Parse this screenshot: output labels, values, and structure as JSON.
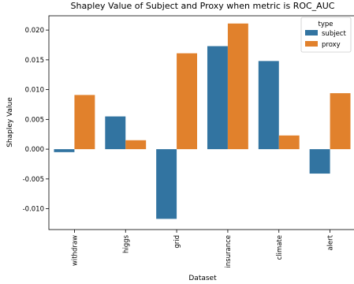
{
  "chart_data": {
    "type": "bar",
    "title": "Shapley Value of Subject and Proxy when metric is ROC_AUC",
    "xlabel": "Dataset",
    "ylabel": "Shapley Value",
    "categories": [
      "withdraw",
      "higgs",
      "grid",
      "insurance",
      "climate",
      "alert"
    ],
    "series": [
      {
        "name": "subject",
        "color": "#3274a1",
        "values": [
          -0.0005,
          0.0055,
          -0.0117,
          0.0173,
          0.0148,
          -0.0041
        ]
      },
      {
        "name": "proxy",
        "color": "#e1812c",
        "values": [
          0.0091,
          0.0015,
          0.0161,
          0.0211,
          0.0023,
          0.0094
        ]
      }
    ],
    "ylim": [
      -0.0135,
      0.0224
    ],
    "yticks": [
      "0.020",
      "0.015",
      "0.010",
      "0.005",
      "0.000",
      "-0.005",
      "-0.010"
    ],
    "legend": {
      "title": "type",
      "position": "top-right"
    },
    "grid": false
  }
}
